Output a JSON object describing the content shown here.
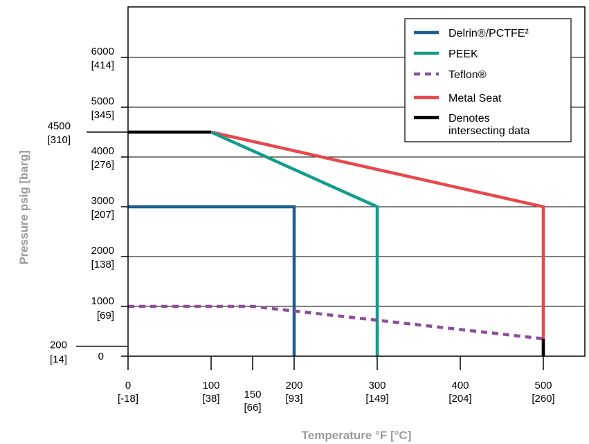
{
  "chart_data": {
    "type": "line",
    "xlabel": "Temperature °F [°C]",
    "ylabel": "Pressure psig [barg]",
    "xlim": [
      0,
      550
    ],
    "ylim": [
      0,
      7000
    ],
    "grid": "horizontal",
    "legend_position": "top-right",
    "x_ticks": [
      {
        "value": 0,
        "label": "0",
        "sub": "[-18]"
      },
      {
        "value": 100,
        "label": "100",
        "sub": "[38]"
      },
      {
        "value": 150,
        "label": "150",
        "sub": "[66]"
      },
      {
        "value": 200,
        "label": "200",
        "sub": "[93]"
      },
      {
        "value": 300,
        "label": "300",
        "sub": "[149]"
      },
      {
        "value": 400,
        "label": "400",
        "sub": "[204]"
      },
      {
        "value": 500,
        "label": "500",
        "sub": "[260]"
      }
    ],
    "y_ticks": [
      {
        "value": 0,
        "label": "0",
        "sub": ""
      },
      {
        "value": 200,
        "label": "200",
        "sub": "[14]"
      },
      {
        "value": 1000,
        "label": "1000",
        "sub": "[69]"
      },
      {
        "value": 2000,
        "label": "2000",
        "sub": "[138]"
      },
      {
        "value": 3000,
        "label": "3000",
        "sub": "[207]"
      },
      {
        "value": 4000,
        "label": "4000",
        "sub": "[276]"
      },
      {
        "value": 4500,
        "label": "4500",
        "sub": "[310]"
      },
      {
        "value": 5000,
        "label": "5000",
        "sub": "[345]"
      },
      {
        "value": 6000,
        "label": "6000",
        "sub": "[414]"
      }
    ],
    "gridlines": [
      1000,
      2000,
      3000,
      4000,
      5000,
      6000
    ],
    "series": [
      {
        "name": "Metal Seat",
        "color": "#e8474c",
        "dash": "solid",
        "points": [
          [
            100,
            4500
          ],
          [
            500,
            3000
          ],
          [
            500,
            0
          ]
        ]
      },
      {
        "name": "PEEK",
        "color": "#129c8c",
        "dash": "solid",
        "points": [
          [
            100,
            4500
          ],
          [
            300,
            3000
          ],
          [
            300,
            0
          ]
        ]
      },
      {
        "name": "Delrin®/PCTFE²",
        "color": "#1c5e8e",
        "dash": "solid",
        "points": [
          [
            0,
            3000
          ],
          [
            200,
            3000
          ],
          [
            200,
            0
          ]
        ]
      },
      {
        "name": "Teflon®",
        "color": "#8e4d9c",
        "dash": "dashed",
        "points": [
          [
            0,
            1000
          ],
          [
            150,
            1000
          ],
          [
            500,
            350
          ]
        ]
      },
      {
        "name": "Denotes intersecting data",
        "color": "#000000",
        "dash": "solid",
        "segments": [
          [
            [
              0,
              4500
            ],
            [
              100,
              4500
            ]
          ],
          [
            [
              500,
              350
            ],
            [
              500,
              0
            ]
          ]
        ]
      }
    ],
    "legend": [
      {
        "label": "Delrin®/PCTFE²",
        "color": "#1c5e8e",
        "dash": "solid"
      },
      {
        "label": "PEEK",
        "color": "#129c8c",
        "dash": "solid"
      },
      {
        "label": "Teflon®",
        "color": "#8e4d9c",
        "dash": "dashed"
      },
      {
        "label": "Metal Seat",
        "color": "#e8474c",
        "dash": "solid"
      },
      {
        "label": "Denotes intersecting data",
        "color": "#000000",
        "dash": "solid"
      }
    ]
  }
}
